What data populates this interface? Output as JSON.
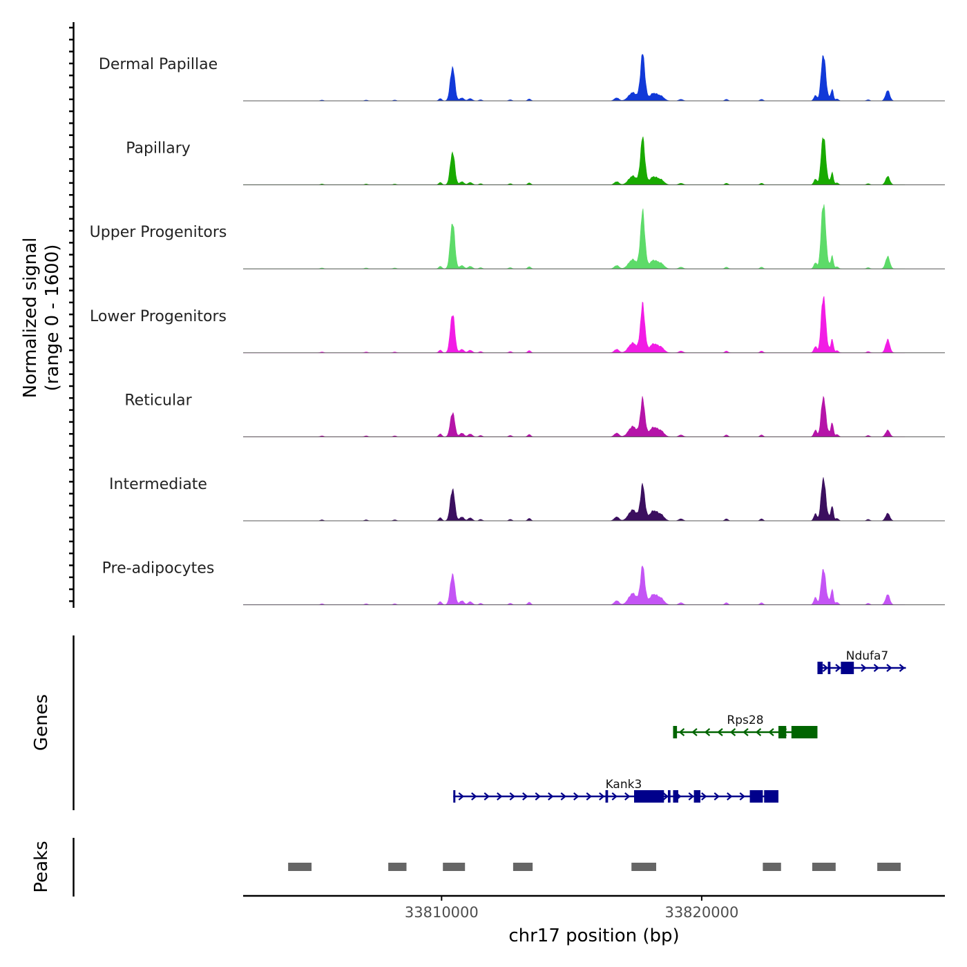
{
  "chart_data": {
    "type": "area",
    "title": "",
    "xlabel": "chr17 position (bp)",
    "ylabel": "Normalized signal",
    "ylabel_sub": "(range 0 - 1600)",
    "yrange": [
      0,
      1600
    ],
    "xlim": [
      33802370,
      33829350
    ],
    "x_ticks": [
      33810000,
      33820000
    ],
    "x_tick_labels": [
      "33810000",
      "33820000"
    ],
    "tracks": [
      {
        "name": "Dermal Papillae",
        "color": "#1139d8",
        "peaks": [
          {
            "x": 33810420,
            "h": 0.72
          },
          {
            "x": 33817730,
            "h": 0.98
          },
          {
            "x": 33824680,
            "h": 1.0
          },
          {
            "x": 33827150,
            "h": 0.22
          }
        ]
      },
      {
        "name": "Papillary",
        "color": "#19aa00",
        "peaks": [
          {
            "x": 33810420,
            "h": 0.7
          },
          {
            "x": 33817730,
            "h": 0.98
          },
          {
            "x": 33824680,
            "h": 1.06
          },
          {
            "x": 33827150,
            "h": 0.18
          }
        ]
      },
      {
        "name": "Upper Progenitors",
        "color": "#5ddb69",
        "peaks": [
          {
            "x": 33810420,
            "h": 1.0
          },
          {
            "x": 33817730,
            "h": 1.19
          },
          {
            "x": 33824680,
            "h": 1.42
          },
          {
            "x": 33827150,
            "h": 0.26
          }
        ]
      },
      {
        "name": "Lower Progenitors",
        "color": "#f21ce5",
        "peaks": [
          {
            "x": 33810420,
            "h": 0.84
          },
          {
            "x": 33817730,
            "h": 1.0
          },
          {
            "x": 33824680,
            "h": 1.22
          },
          {
            "x": 33827150,
            "h": 0.28
          }
        ]
      },
      {
        "name": "Reticular",
        "color": "#b514a8",
        "peaks": [
          {
            "x": 33810420,
            "h": 0.52
          },
          {
            "x": 33817730,
            "h": 0.78
          },
          {
            "x": 33824680,
            "h": 0.86
          },
          {
            "x": 33827150,
            "h": 0.14
          }
        ]
      },
      {
        "name": "Intermediate",
        "color": "#3b0f5f",
        "peaks": [
          {
            "x": 33810420,
            "h": 0.68
          },
          {
            "x": 33817730,
            "h": 0.74
          },
          {
            "x": 33824680,
            "h": 0.92
          },
          {
            "x": 33827150,
            "h": 0.16
          }
        ]
      },
      {
        "name": "Pre-adipocytes",
        "color": "#c454f5",
        "peaks": [
          {
            "x": 33810420,
            "h": 0.66
          },
          {
            "x": 33817730,
            "h": 0.8
          },
          {
            "x": 33824680,
            "h": 0.78
          },
          {
            "x": 33827150,
            "h": 0.22
          }
        ]
      }
    ],
    "genes_label": "Genes",
    "genes": [
      {
        "name": "Ndufa7",
        "strand": "+",
        "start": 33824450,
        "end": 33827850,
        "color": "#00008b",
        "exons": [
          [
            33824450,
            33824650
          ],
          [
            33824850,
            33824950
          ],
          [
            33825350,
            33825850
          ]
        ]
      },
      {
        "name": "Rps28",
        "strand": "-",
        "start": 33818900,
        "end": 33824450,
        "color": "#006400",
        "exons": [
          [
            33818900,
            33819050
          ],
          [
            33822950,
            33823250
          ],
          [
            33823450,
            33824450
          ]
        ]
      },
      {
        "name": "Kank3",
        "strand": "+",
        "start": 33810450,
        "end": 33822950,
        "color": "#00008b",
        "exons": [
          [
            33810450,
            33810500
          ],
          [
            33816300,
            33816400
          ],
          [
            33817400,
            33818550
          ],
          [
            33818700,
            33818800
          ],
          [
            33818900,
            33819100
          ],
          [
            33819700,
            33819950
          ],
          [
            33821850,
            33822350
          ],
          [
            33822400,
            33822950
          ]
        ]
      }
    ],
    "peaks_label": "Peaks",
    "peak_regions": [
      [
        33804100,
        33805000
      ],
      [
        33807950,
        33808650
      ],
      [
        33810050,
        33810900
      ],
      [
        33812750,
        33813500
      ],
      [
        33817300,
        33818250
      ],
      [
        33822350,
        33823050
      ],
      [
        33824250,
        33825150
      ],
      [
        33826750,
        33827650
      ]
    ]
  }
}
